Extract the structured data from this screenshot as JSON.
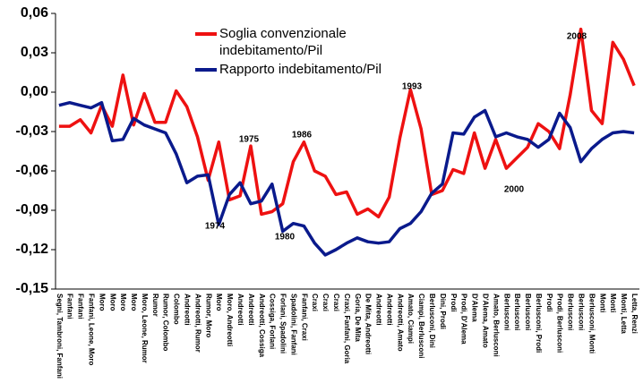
{
  "chart_data": {
    "type": "line",
    "categories": [
      "Segni, Tambroni, Fanfani",
      "Fanfani",
      "Fanfani",
      "Fanfani, Leone, Moro",
      "Moro",
      "Moro",
      "Moro",
      "Moro",
      "Moro, Leone, Rumor",
      "Rumor",
      "Rumor, Colombo",
      "Colombo",
      "Andreotti",
      "Andreotti, Rumor",
      "Rumor, Moro",
      "Moro",
      "Moro, Andreotti",
      "Andreotti",
      "Andreotti",
      "Andreotti, Cossiga",
      "Cossiga, Forlani",
      "Forlani, Spadolini",
      "Spadolini, Fanfani",
      "Fanfani, Craxi",
      "Craxi",
      "Craxi",
      "Craxi",
      "Craxi, Fanfani, Goria",
      "Goria, De Mita",
      "De Mita, Andreotti",
      "Andreotti",
      "Andreotti",
      "Andreotti, Amato",
      "Amato, Ciampi",
      "Ciampi, Berlusconi",
      "Berlusconi, Dini",
      "Dini, Prodi",
      "Prodi",
      "Prodi, D'Alema",
      "D'Alema",
      "D'Alema, Amato",
      "Amato, Berlusconi",
      "Berlusconi",
      "Berlusconi",
      "Berlusconi",
      "Berlusconi, Prodi",
      "Prodi",
      "Prodi, Berlusconi",
      "Berlusconi",
      "Berlusconi",
      "Berlusconi, Monti",
      "Monti",
      "Monti",
      "Monti, Letta",
      "Letta, Renzi"
    ],
    "series": [
      {
        "name": "Soglia convenzionale indebitamento/Pil",
        "color": "#ee1111",
        "values": [
          -0.026,
          -0.026,
          -0.021,
          -0.031,
          -0.01,
          -0.026,
          0.013,
          -0.025,
          -0.001,
          -0.023,
          -0.023,
          0.001,
          -0.011,
          -0.034,
          -0.067,
          -0.038,
          -0.082,
          -0.079,
          -0.041,
          -0.093,
          -0.091,
          -0.085,
          -0.053,
          -0.038,
          -0.06,
          -0.064,
          -0.078,
          -0.076,
          -0.093,
          -0.089,
          -0.095,
          -0.08,
          -0.035,
          0.002,
          -0.028,
          -0.078,
          -0.075,
          -0.059,
          -0.062,
          -0.031,
          -0.058,
          -0.036,
          -0.058,
          -0.05,
          -0.042,
          -0.024,
          -0.03,
          -0.043,
          -0.002,
          0.048,
          -0.014,
          -0.024,
          0.038,
          0.025,
          0.005
        ]
      },
      {
        "name": "Rapporto indebitamento/Pil",
        "color": "#0a1a8c",
        "values": [
          -0.01,
          -0.008,
          -0.01,
          -0.012,
          -0.008,
          -0.037,
          -0.036,
          -0.02,
          -0.025,
          -0.028,
          -0.031,
          -0.047,
          -0.069,
          -0.064,
          -0.063,
          -0.101,
          -0.078,
          -0.069,
          -0.085,
          -0.083,
          -0.07,
          -0.106,
          -0.1,
          -0.102,
          -0.115,
          -0.124,
          -0.12,
          -0.115,
          -0.111,
          -0.114,
          -0.115,
          -0.114,
          -0.104,
          -0.1,
          -0.091,
          -0.077,
          -0.07,
          -0.031,
          -0.032,
          -0.019,
          -0.014,
          -0.034,
          -0.031,
          -0.034,
          -0.036,
          -0.042,
          -0.036,
          -0.016,
          -0.027,
          -0.053,
          -0.043,
          -0.036,
          -0.031,
          -0.03,
          -0.031
        ]
      }
    ],
    "ylim": [
      -0.15,
      0.06
    ],
    "yticks": [
      {
        "value": 0.06,
        "label": "0,06"
      },
      {
        "value": 0.03,
        "label": "0,03"
      },
      {
        "value": 0,
        "label": "0,00"
      },
      {
        "value": -0.03,
        "label": "-0,03"
      },
      {
        "value": -0.06,
        "label": "-0,06"
      },
      {
        "value": -0.09,
        "label": "-0,09"
      },
      {
        "value": -0.12,
        "label": "-0,12"
      },
      {
        "value": -0.15,
        "label": "-0,15"
      }
    ],
    "annotations": [
      "1975",
      "1974",
      "1986",
      "1980",
      "1993",
      "2000",
      "2008"
    ]
  }
}
